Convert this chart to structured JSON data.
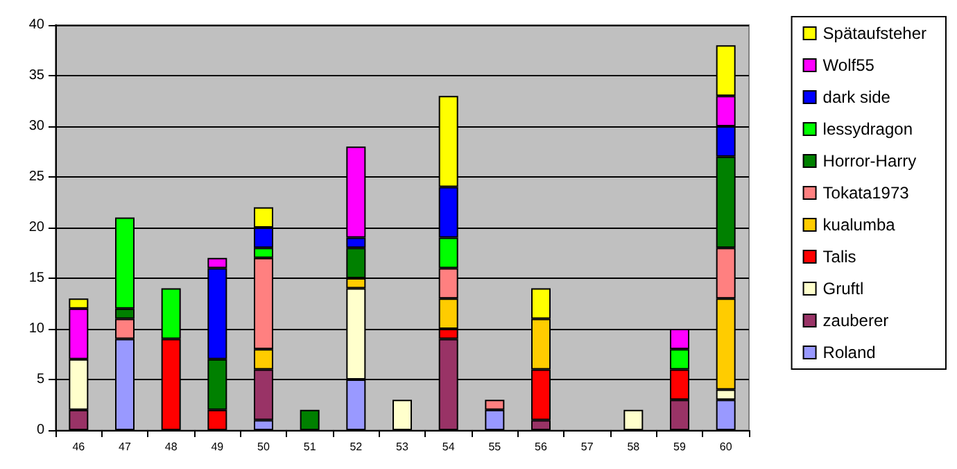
{
  "chart_data": {
    "type": "bar",
    "stacked": true,
    "categories": [
      "46",
      "47",
      "48",
      "49",
      "50",
      "51",
      "52",
      "53",
      "54",
      "55",
      "56",
      "57",
      "58",
      "59",
      "60"
    ],
    "series": [
      {
        "name": "Roland",
        "color": "#9999ff",
        "values": [
          null,
          9,
          null,
          null,
          1,
          null,
          5,
          null,
          null,
          2,
          null,
          null,
          null,
          null,
          3
        ]
      },
      {
        "name": "zauberer",
        "color": "#993366",
        "values": [
          2,
          null,
          null,
          null,
          5,
          null,
          null,
          null,
          9,
          null,
          1,
          null,
          null,
          3,
          null
        ]
      },
      {
        "name": "Gruftl",
        "color": "#ffffcc",
        "values": [
          5,
          null,
          null,
          null,
          null,
          null,
          9,
          3,
          null,
          null,
          null,
          null,
          2,
          null,
          1
        ]
      },
      {
        "name": "Talis",
        "color": "#ff0000",
        "values": [
          null,
          null,
          9,
          2,
          null,
          null,
          null,
          null,
          1,
          null,
          5,
          null,
          null,
          3,
          null
        ]
      },
      {
        "name": "kualumba",
        "color": "#ffcc00",
        "values": [
          null,
          null,
          null,
          null,
          2,
          null,
          1,
          null,
          3,
          null,
          5,
          null,
          null,
          null,
          9
        ]
      },
      {
        "name": "Tokata1973",
        "color": "#ff8080",
        "values": [
          null,
          2,
          null,
          null,
          9,
          null,
          null,
          null,
          3,
          1,
          null,
          null,
          null,
          null,
          5
        ]
      },
      {
        "name": "Horror-Harry",
        "color": "#008000",
        "values": [
          null,
          1,
          null,
          5,
          null,
          2,
          3,
          null,
          null,
          null,
          null,
          null,
          null,
          null,
          9
        ]
      },
      {
        "name": "lessydragon",
        "color": "#00ff00",
        "values": [
          null,
          9,
          5,
          null,
          1,
          null,
          null,
          null,
          3,
          null,
          null,
          null,
          null,
          2,
          null
        ]
      },
      {
        "name": "dark side",
        "color": "#0000ff",
        "values": [
          null,
          null,
          null,
          9,
          2,
          null,
          1,
          null,
          5,
          null,
          null,
          null,
          null,
          null,
          3
        ]
      },
      {
        "name": "Wolf55",
        "color": "#ff00ff",
        "values": [
          5,
          null,
          null,
          1,
          null,
          null,
          9,
          null,
          null,
          null,
          null,
          null,
          null,
          2,
          3
        ]
      },
      {
        "name": "Spätaufsteher",
        "color": "#ffff00",
        "values": [
          1,
          null,
          null,
          null,
          2,
          null,
          null,
          null,
          9,
          null,
          3,
          null,
          null,
          null,
          5
        ]
      }
    ],
    "ylim": [
      0,
      40
    ],
    "yticks": [
      0,
      5,
      10,
      15,
      20,
      25,
      30,
      35,
      40
    ],
    "grid": "y",
    "legend": "right"
  }
}
